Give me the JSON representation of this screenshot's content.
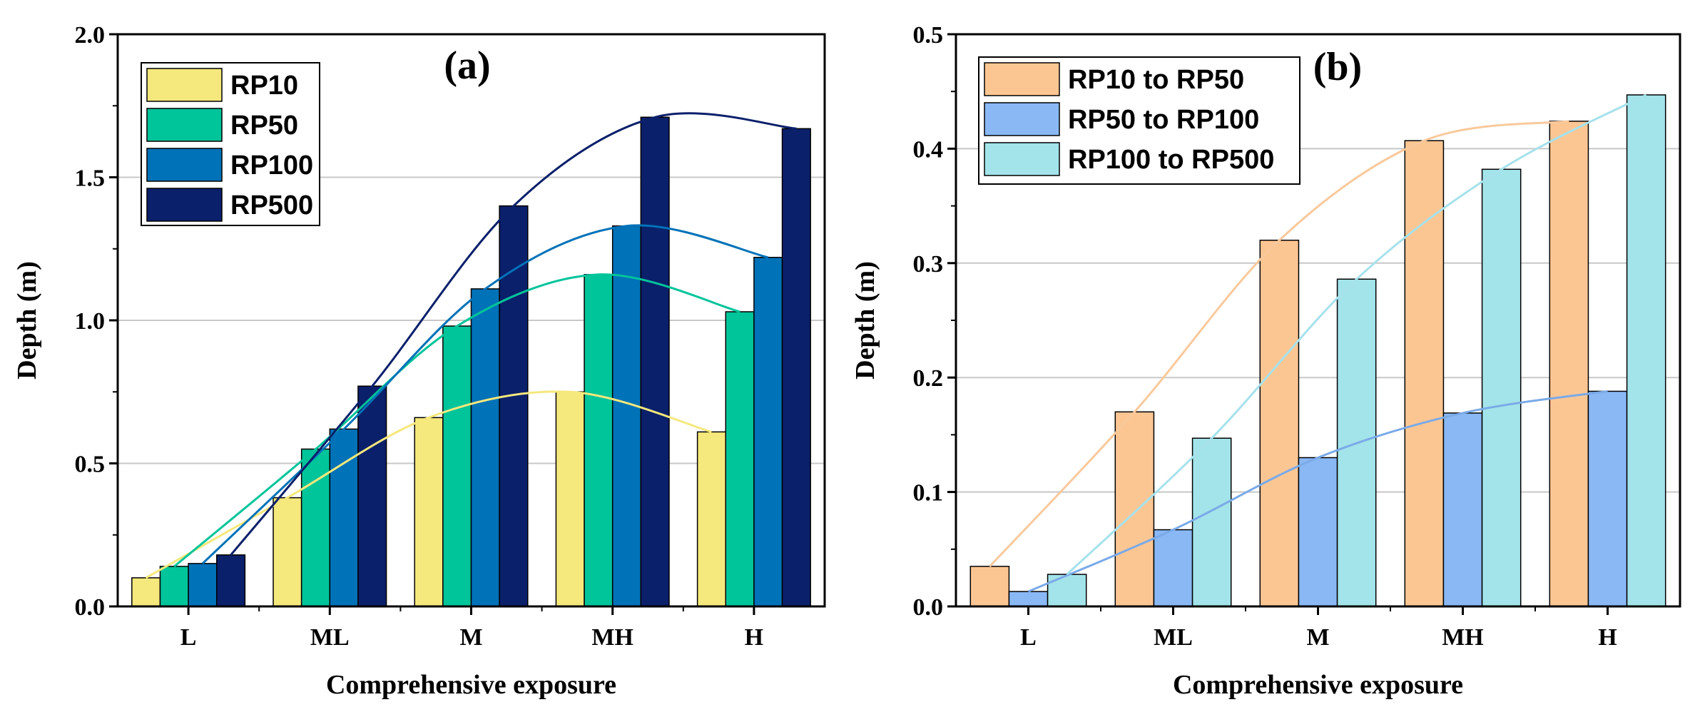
{
  "chart_data": [
    {
      "type": "bar",
      "panel_label": "(a)",
      "xlabel": "Comprehensive exposure",
      "ylabel": "Depth (m)",
      "categories": [
        "L",
        "ML",
        "M",
        "MH",
        "H"
      ],
      "ylim": [
        0,
        2.0
      ],
      "yticks": [
        "0.0",
        "0.5",
        "1.0",
        "1.5",
        "2.0"
      ],
      "grid": "horizontal",
      "legend_position": "top-left",
      "trend_lines": true,
      "series": [
        {
          "name": "RP10",
          "color": "#f5e87c",
          "values": [
            0.1,
            0.38,
            0.66,
            0.75,
            0.61
          ]
        },
        {
          "name": "RP50",
          "color": "#00c49a",
          "values": [
            0.14,
            0.55,
            0.98,
            1.16,
            1.03
          ]
        },
        {
          "name": "RP100",
          "color": "#0072b8",
          "values": [
            0.15,
            0.62,
            1.11,
            1.33,
            1.22
          ]
        },
        {
          "name": "RP500",
          "color": "#0b206b",
          "values": [
            0.18,
            0.77,
            1.4,
            1.71,
            1.67
          ]
        }
      ]
    },
    {
      "type": "bar",
      "panel_label": "(b)",
      "xlabel": "Comprehensive exposure",
      "ylabel": "Depth (m)",
      "categories": [
        "L",
        "ML",
        "M",
        "MH",
        "H"
      ],
      "ylim": [
        0,
        0.5
      ],
      "yticks": [
        "0.0",
        "0.1",
        "0.2",
        "0.3",
        "0.4",
        "0.5"
      ],
      "grid": "horizontal",
      "legend_position": "top-left",
      "trend_lines": true,
      "series": [
        {
          "name": "RP10 to RP50",
          "color": "#fcc693",
          "line_color": "#f9c99c",
          "values": [
            0.035,
            0.17,
            0.32,
            0.407,
            0.424
          ]
        },
        {
          "name": "RP50 to RP100",
          "color": "#8ab8f5",
          "line_color": "#7aaae8",
          "values": [
            0.013,
            0.067,
            0.13,
            0.169,
            0.188
          ]
        },
        {
          "name": "RP100 to RP500",
          "color": "#a3e4ea",
          "line_color": "#a6e2ec",
          "values": [
            0.028,
            0.147,
            0.286,
            0.382,
            0.447
          ]
        }
      ]
    }
  ]
}
